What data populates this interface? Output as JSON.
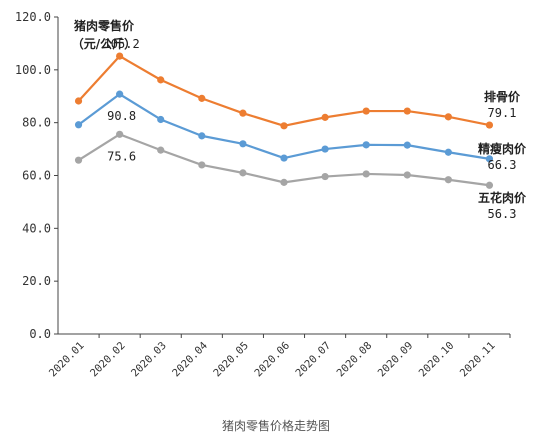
{
  "chart_data": {
    "type": "line",
    "title": "猪肉零售价",
    "unit": "（元/公斤）",
    "caption": "猪肉零售价格走势图",
    "categories": [
      "2020.01",
      "2020.02",
      "2020.03",
      "2020.04",
      "2020.05",
      "2020.06",
      "2020.07",
      "2020.08",
      "2020.09",
      "2020.10",
      "2020.11"
    ],
    "ylim": [
      0,
      120
    ],
    "yticks": [
      "0.0",
      "20.0",
      "40.0",
      "60.0",
      "80.0",
      "100.0",
      "120.0"
    ],
    "series": [
      {
        "name": "排骨价",
        "color": "#ED7D31",
        "values": [
          88.2,
          105.2,
          96.2,
          89.2,
          83.6,
          78.8,
          82.0,
          84.4,
          84.4,
          82.2,
          79.1
        ],
        "peak_label": "105.2",
        "end_label": "79.1"
      },
      {
        "name": "精瘦肉价",
        "color": "#5B9BD5",
        "values": [
          79.2,
          90.8,
          81.2,
          75.0,
          72.0,
          66.6,
          70.0,
          71.6,
          71.5,
          68.8,
          66.3
        ],
        "peak_label": "90.8",
        "end_label": "66.3"
      },
      {
        "name": "五花肉价",
        "color": "#A5A5A5",
        "values": [
          65.8,
          75.6,
          69.6,
          64.0,
          61.0,
          57.4,
          59.6,
          60.6,
          60.2,
          58.4,
          56.3
        ],
        "peak_label": "75.6",
        "end_label": "56.3"
      }
    ]
  }
}
